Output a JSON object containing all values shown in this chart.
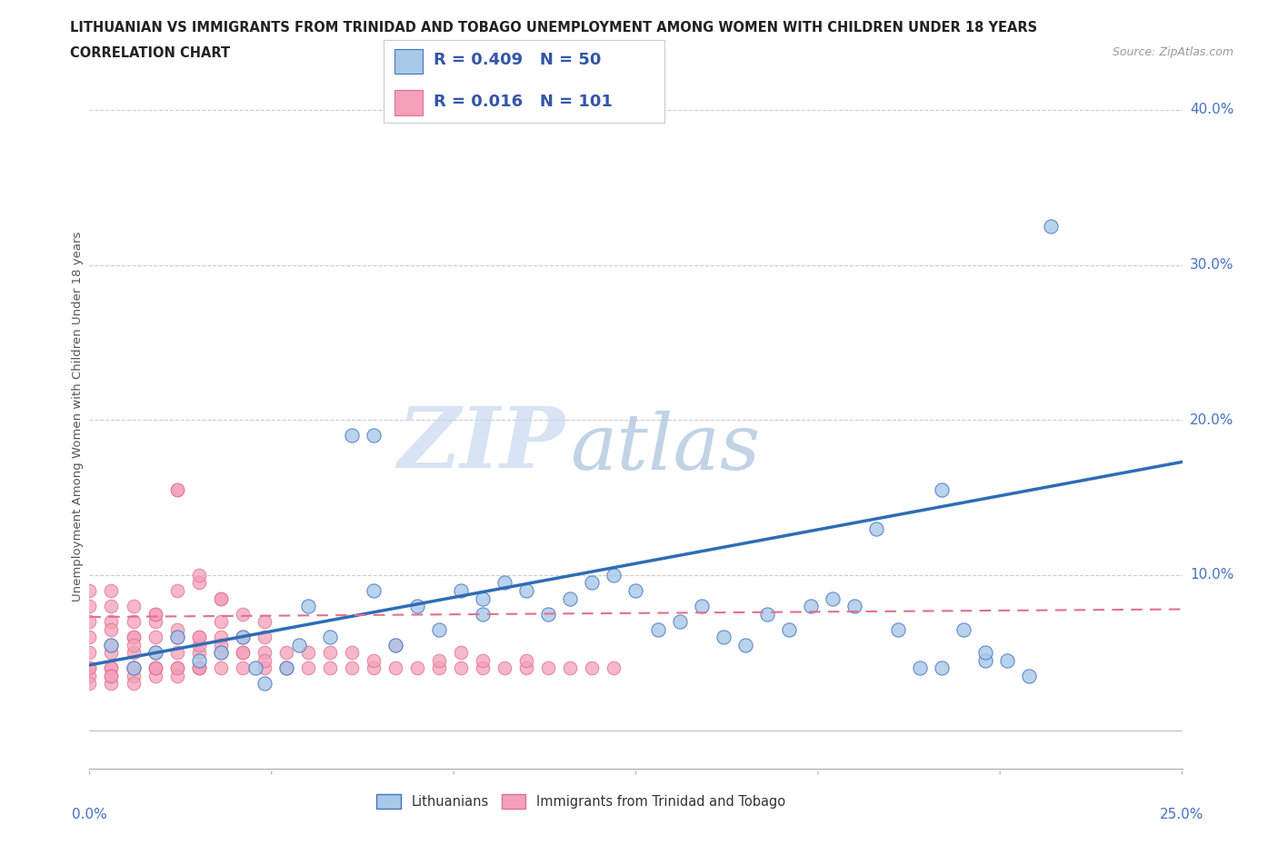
{
  "title_line1": "LITHUANIAN VS IMMIGRANTS FROM TRINIDAD AND TOBAGO UNEMPLOYMENT AMONG WOMEN WITH CHILDREN UNDER 18 YEARS",
  "title_line2": "CORRELATION CHART",
  "source": "Source: ZipAtlas.com",
  "ylabel": "Unemployment Among Women with Children Under 18 years",
  "ytick_labels": [
    "",
    "10.0%",
    "20.0%",
    "30.0%",
    "40.0%"
  ],
  "ytick_values": [
    0.0,
    0.1,
    0.2,
    0.3,
    0.4
  ],
  "xmin": 0.0,
  "xmax": 0.25,
  "ymin": -0.025,
  "ymax": 0.43,
  "blue_color": "#a8c8e8",
  "blue_edge_color": "#4472c4",
  "pink_color": "#f4a0b8",
  "pink_edge_color": "#e07090",
  "blue_line_color": "#2e6db5",
  "pink_line_color": "#e07090",
  "grid_color": "#cccccc",
  "watermark_zip": "ZIP",
  "watermark_atlas": "atlas",
  "legend_text": [
    [
      "R = 0.409",
      "N = 50"
    ],
    [
      "R = 0.016",
      "N = 101"
    ]
  ],
  "blue_trendline": [
    0.0,
    0.25,
    0.042,
    0.173
  ],
  "pink_trendline": [
    0.0,
    0.25,
    0.073,
    0.078
  ],
  "blue_x": [
    0.005,
    0.01,
    0.015,
    0.02,
    0.025,
    0.03,
    0.035,
    0.038,
    0.04,
    0.045,
    0.048,
    0.05,
    0.055,
    0.06,
    0.065,
    0.065,
    0.07,
    0.075,
    0.08,
    0.085,
    0.09,
    0.09,
    0.095,
    0.1,
    0.105,
    0.11,
    0.115,
    0.12,
    0.125,
    0.13,
    0.135,
    0.14,
    0.145,
    0.15,
    0.155,
    0.16,
    0.165,
    0.17,
    0.175,
    0.18,
    0.185,
    0.19,
    0.195,
    0.2,
    0.205,
    0.21,
    0.215,
    0.22,
    0.195,
    0.205
  ],
  "blue_y": [
    0.055,
    0.04,
    0.05,
    0.06,
    0.045,
    0.05,
    0.06,
    0.04,
    0.03,
    0.04,
    0.055,
    0.08,
    0.06,
    0.19,
    0.09,
    0.19,
    0.055,
    0.08,
    0.065,
    0.09,
    0.075,
    0.085,
    0.095,
    0.09,
    0.075,
    0.085,
    0.095,
    0.1,
    0.09,
    0.065,
    0.07,
    0.08,
    0.06,
    0.055,
    0.075,
    0.065,
    0.08,
    0.085,
    0.08,
    0.13,
    0.065,
    0.04,
    0.04,
    0.065,
    0.045,
    0.045,
    0.035,
    0.325,
    0.155,
    0.05
  ],
  "pink_x": [
    0.0,
    0.0,
    0.0,
    0.0,
    0.0,
    0.0,
    0.0,
    0.005,
    0.005,
    0.005,
    0.005,
    0.005,
    0.005,
    0.01,
    0.01,
    0.01,
    0.01,
    0.01,
    0.01,
    0.015,
    0.015,
    0.015,
    0.015,
    0.015,
    0.02,
    0.02,
    0.02,
    0.02,
    0.02,
    0.025,
    0.025,
    0.025,
    0.025,
    0.03,
    0.03,
    0.03,
    0.03,
    0.035,
    0.035,
    0.035,
    0.04,
    0.04,
    0.04,
    0.045,
    0.045,
    0.05,
    0.05,
    0.055,
    0.055,
    0.06,
    0.06,
    0.065,
    0.065,
    0.07,
    0.07,
    0.075,
    0.08,
    0.08,
    0.085,
    0.085,
    0.09,
    0.09,
    0.095,
    0.1,
    0.1,
    0.105,
    0.11,
    0.115,
    0.12,
    0.0,
    0.005,
    0.005,
    0.01,
    0.015,
    0.02,
    0.025,
    0.02,
    0.025,
    0.03,
    0.015,
    0.02,
    0.025,
    0.03,
    0.035,
    0.04,
    0.045,
    0.025,
    0.03,
    0.035,
    0.04,
    0.01,
    0.015,
    0.005,
    0.01,
    0.015,
    0.02,
    0.025,
    0.0,
    0.005,
    0.01,
    0.005
  ],
  "pink_y": [
    0.04,
    0.05,
    0.06,
    0.07,
    0.08,
    0.09,
    0.035,
    0.04,
    0.05,
    0.055,
    0.07,
    0.08,
    0.09,
    0.04,
    0.05,
    0.06,
    0.07,
    0.08,
    0.04,
    0.05,
    0.06,
    0.07,
    0.04,
    0.035,
    0.04,
    0.05,
    0.06,
    0.155,
    0.155,
    0.04,
    0.05,
    0.055,
    0.06,
    0.04,
    0.05,
    0.06,
    0.07,
    0.04,
    0.05,
    0.06,
    0.04,
    0.05,
    0.06,
    0.04,
    0.05,
    0.04,
    0.05,
    0.04,
    0.05,
    0.04,
    0.05,
    0.04,
    0.045,
    0.04,
    0.055,
    0.04,
    0.04,
    0.045,
    0.04,
    0.05,
    0.04,
    0.045,
    0.04,
    0.04,
    0.045,
    0.04,
    0.04,
    0.04,
    0.04,
    0.03,
    0.03,
    0.04,
    0.035,
    0.04,
    0.035,
    0.04,
    0.09,
    0.095,
    0.085,
    0.075,
    0.065,
    0.06,
    0.055,
    0.05,
    0.045,
    0.04,
    0.1,
    0.085,
    0.075,
    0.07,
    0.06,
    0.075,
    0.065,
    0.055,
    0.04,
    0.04,
    0.04,
    0.04,
    0.035,
    0.03,
    0.035
  ]
}
